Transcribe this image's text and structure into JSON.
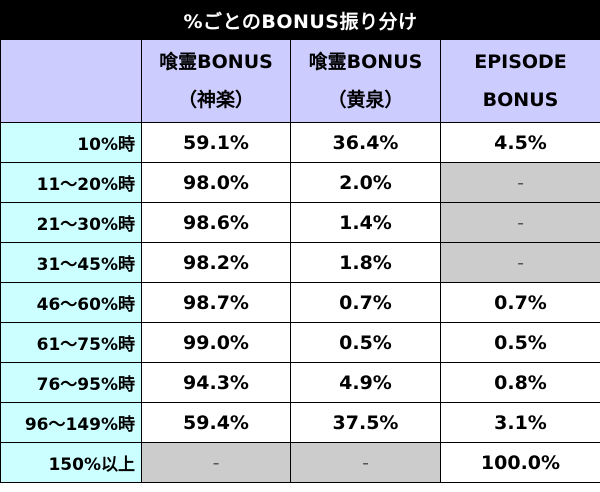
{
  "title": "%ごとのBONUS振り分け",
  "headers": [
    {
      "line1": "",
      "line2": ""
    },
    {
      "line1": "喰霊BONUS",
      "line2": "（神楽）"
    },
    {
      "line1": "喰霊BONUS",
      "line2": "（黄泉）"
    },
    {
      "line1": "EPISODE",
      "line2": "BONUS"
    }
  ],
  "rows": [
    {
      "label": "10%時",
      "values": [
        "59.1%",
        "36.4%",
        "4.5%"
      ]
    },
    {
      "label": "11〜20%時",
      "values": [
        "98.0%",
        "2.0%",
        "-"
      ]
    },
    {
      "label": "21〜30%時",
      "values": [
        "98.6%",
        "1.4%",
        "-"
      ]
    },
    {
      "label": "31〜45%時",
      "values": [
        "98.2%",
        "1.8%",
        "-"
      ]
    },
    {
      "label": "46〜60%時",
      "values": [
        "98.7%",
        "0.7%",
        "0.7%"
      ]
    },
    {
      "label": "61〜75%時",
      "values": [
        "99.0%",
        "0.5%",
        "0.5%"
      ]
    },
    {
      "label": "76〜95%時",
      "values": [
        "94.3%",
        "4.9%",
        "0.8%"
      ]
    },
    {
      "label": "96〜149%時",
      "values": [
        "59.4%",
        "37.5%",
        "3.1%"
      ]
    },
    {
      "label": "150%以上",
      "values": [
        "-",
        "-",
        "100.0%"
      ]
    }
  ]
}
